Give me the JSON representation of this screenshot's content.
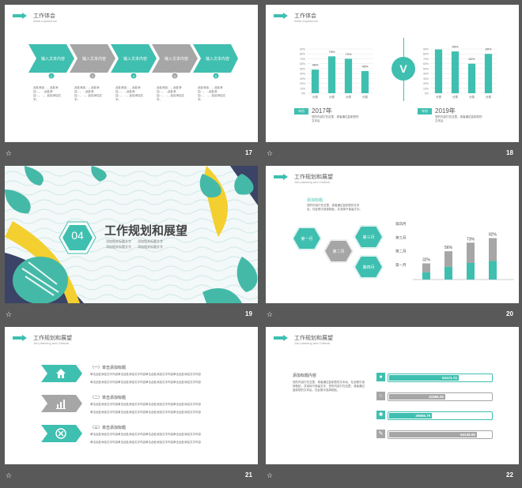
{
  "colors": {
    "teal": "#3fbfb0",
    "gray": "#a6a6a6",
    "bg": "#595959"
  },
  "slides": [
    {
      "number": "17",
      "title": "工作体会",
      "subtitle": "Work experience",
      "steps": [
        {
          "label": "输入文本内容",
          "num": "1"
        },
        {
          "label": "输入文本内容",
          "num": "2"
        },
        {
          "label": "输入文本内容",
          "num": "3"
        },
        {
          "label": "输入文本内容",
          "num": "4"
        },
        {
          "label": "输入文本内容",
          "num": "5"
        }
      ],
      "step_text": "此处添加…，此处添加…，…此处添加…，…，此处添加文字。"
    },
    {
      "number": "18",
      "title": "工作体会",
      "subtitle": "Work experience",
      "left": {
        "year_tag": "年份",
        "year": "2017年",
        "desc": "您的内容打在这里，或者通过复制您的文本后",
        "bars": [
          {
            "cat": "分类",
            "pct": "48%"
          },
          {
            "cat": "分类",
            "pct": "75%"
          },
          {
            "cat": "分类",
            "pct": "70%"
          },
          {
            "cat": "分类",
            "pct": "45%"
          }
        ],
        "ylabels": [
          "90%",
          "80%",
          "70%",
          "60%",
          "50%",
          "40%",
          "30%",
          "20%",
          "10%",
          "0%"
        ]
      },
      "vs": "V",
      "right": {
        "year_tag": "年份",
        "year": "2019年",
        "desc": "您的内容打在这里，或者通过复制您的文本后",
        "bars": [
          {
            "cat": "分类",
            "pct": "89%"
          },
          {
            "cat": "分类",
            "pct": "85%"
          },
          {
            "cat": "分类",
            "pct": "60%"
          },
          {
            "cat": "分类",
            "pct": "80%"
          }
        ],
        "ylabels": [
          "90%",
          "80%",
          "70%",
          "60%",
          "50%",
          "40%",
          "30%",
          "20%",
          "10%",
          "0%"
        ]
      }
    },
    {
      "number": "19",
      "section_num": "04",
      "section_title": "工作规划和展望",
      "bullets": [
        "添加相关标题文字",
        "添加相关标题文字",
        "添加相关标题文字",
        "添加相关标题文字"
      ]
    },
    {
      "number": "20",
      "title": "工作规划和展望",
      "subtitle": "Job planning and Outlook",
      "heading": "添加标题",
      "body": "您的内容打在这里，或者通过复制您的文本后，在此框中选择粘贴，并选择只保留文字。",
      "hexes": [
        "第一月",
        "第二月",
        "第三月",
        "第四月"
      ],
      "chart": {
        "categories": [
          "第一月",
          "第二月",
          "第三月",
          "第四月"
        ],
        "labels": [
          "32%",
          "56%",
          "73%",
          "82%"
        ],
        "values": [
          32,
          56,
          73,
          82
        ]
      }
    },
    {
      "number": "21",
      "title": "工作规划和展望",
      "subtitle": "Job planning and Outlook",
      "items": [
        {
          "title": "（一）单击添加标题",
          "icon": "home-icon"
        },
        {
          "title": "（二）单击添加标题",
          "icon": "bar-chart-icon"
        },
        {
          "title": "（三）单击添加标题",
          "icon": "tools-icon"
        }
      ],
      "item_text": "单击此处添加文字内容单击此处添加文字内容单击此处添加文字内容单击此处添加文字内容"
    },
    {
      "number": "22",
      "title": "工作规划和展望",
      "subtitle": "Job planning and Outlook",
      "heading": "添加标题内容",
      "body": "您的内容打在这里，或者通过复制您的文本后，在此框中选择粘贴，并选择只保留文字。您的内容打在这里，或者通过复制您的文本后，在此框中选择粘贴。",
      "bars": [
        {
          "value": "54121.74",
          "fill": 0.68,
          "color": "#3fbfb0",
          "icon": "user-icon"
        },
        {
          "value": "41586.25",
          "fill": 0.55,
          "color": "#a6a6a6",
          "icon": "clock-icon"
        },
        {
          "value": "29666.79",
          "fill": 0.42,
          "color": "#3fbfb0",
          "icon": "gear-icon"
        },
        {
          "value": "64149.69",
          "fill": 0.86,
          "color": "#a6a6a6",
          "icon": "edit-icon"
        }
      ]
    }
  ]
}
